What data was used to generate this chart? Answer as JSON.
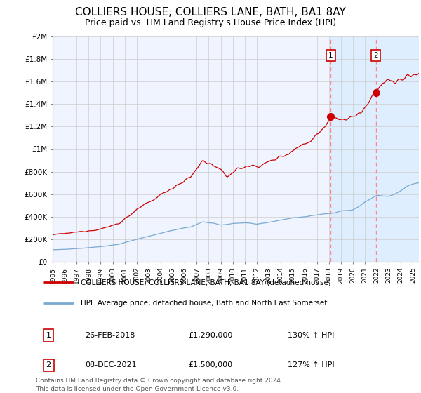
{
  "title": "COLLIERS HOUSE, COLLIERS LANE, BATH, BA1 8AY",
  "subtitle": "Price paid vs. HM Land Registry's House Price Index (HPI)",
  "title_fontsize": 11,
  "subtitle_fontsize": 9,
  "background_color": "#ffffff",
  "plot_bg_color": "#f0f4ff",
  "grid_color": "#cccccc",
  "ylim": [
    0,
    2000000
  ],
  "xlim_start": 1995.0,
  "xlim_end": 2025.5,
  "red_line_color": "#cc0000",
  "blue_line_color": "#7aaad0",
  "highlight_bg_color": "#ddeeff",
  "vline_color": "#ff8888",
  "marker1_x": 2018.15,
  "marker1_y": 1290000,
  "marker2_x": 2021.93,
  "marker2_y": 1500000,
  "marker_color": "#cc0000",
  "marker_size": 7,
  "legend_red_label": "COLLIERS HOUSE, COLLIERS LANE, BATH, BA1 8AY (detached house)",
  "legend_blue_label": "HPI: Average price, detached house, Bath and North East Somerset",
  "table_rows": [
    [
      "1",
      "26-FEB-2018",
      "£1,290,000",
      "130% ↑ HPI"
    ],
    [
      "2",
      "08-DEC-2021",
      "£1,500,000",
      "127% ↑ HPI"
    ]
  ],
  "footnote": "Contains HM Land Registry data © Crown copyright and database right 2024.\nThis data is licensed under the Open Government Licence v3.0.",
  "yticks": [
    0,
    200000,
    400000,
    600000,
    800000,
    1000000,
    1200000,
    1400000,
    1600000,
    1800000,
    2000000
  ],
  "ytick_labels": [
    "£0",
    "£200K",
    "£400K",
    "£600K",
    "£800K",
    "£1M",
    "£1.2M",
    "£1.4M",
    "£1.6M",
    "£1.8M",
    "£2M"
  ],
  "xtick_years": [
    1995,
    1996,
    1997,
    1998,
    1999,
    2000,
    2001,
    2002,
    2003,
    2004,
    2005,
    2006,
    2007,
    2008,
    2009,
    2010,
    2011,
    2012,
    2013,
    2014,
    2015,
    2016,
    2017,
    2018,
    2019,
    2020,
    2021,
    2022,
    2023,
    2024,
    2025
  ]
}
